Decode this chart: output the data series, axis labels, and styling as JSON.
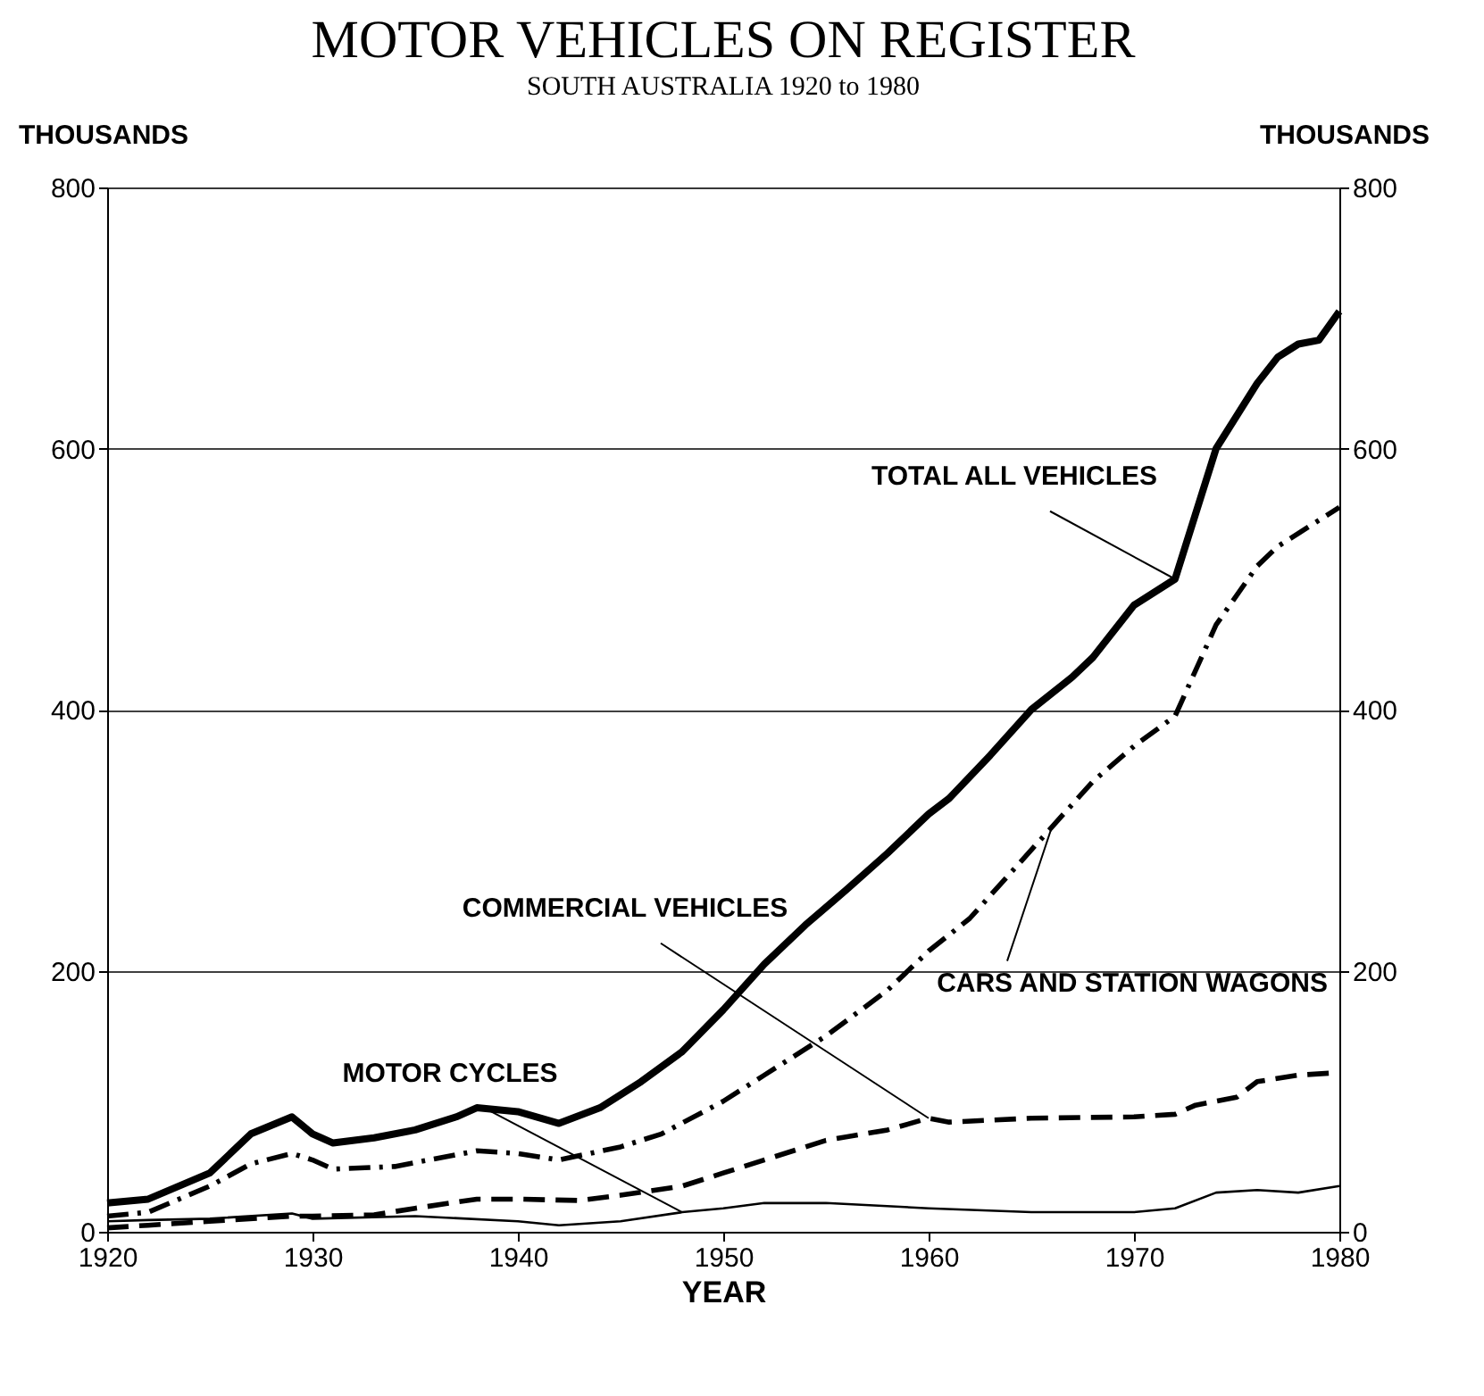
{
  "chart_data": {
    "type": "line",
    "title": "MOTOR VEHICLES ON REGISTER",
    "subtitle": "SOUTH AUSTRALIA 1920 to 1980",
    "xlabel": "YEAR",
    "ylabel": "THOUSANDS",
    "y2label": "THOUSANDS",
    "xlim": [
      1920,
      1980
    ],
    "xticks": [
      1920,
      1930,
      1940,
      1950,
      1960,
      1970,
      1980
    ],
    "ylim": [
      0,
      800
    ],
    "yticks": [
      0,
      200,
      400,
      600,
      800
    ],
    "y2lim": [
      0,
      800
    ],
    "y2ticks": [
      0,
      200,
      400,
      600,
      800
    ],
    "grid": "y",
    "marker": "none",
    "series": [
      {
        "name": "TOTAL ALL VEHICLES",
        "color": "#000000",
        "line_style": "solid",
        "x": [
          1920,
          1922,
          1925,
          1927,
          1929,
          1930,
          1931,
          1933,
          1935,
          1937,
          1938,
          1940,
          1942,
          1944,
          1946,
          1948,
          1950,
          1952,
          1954,
          1956,
          1958,
          1960,
          1961,
          1963,
          1965,
          1967,
          1968,
          1970,
          1972,
          1974,
          1976,
          1977,
          1978,
          1979,
          1980
        ],
        "values": [
          22,
          25,
          45,
          75,
          88,
          75,
          68,
          72,
          78,
          88,
          95,
          92,
          83,
          95,
          115,
          138,
          170,
          205,
          235,
          262,
          290,
          320,
          332,
          365,
          400,
          425,
          440,
          480,
          500,
          600,
          650,
          670,
          680,
          683,
          705
        ]
      },
      {
        "name": "CARS AND STATION WAGONS",
        "color": "#000000",
        "line_style": "dashdot",
        "x": [
          1920,
          1922,
          1925,
          1927,
          1929,
          1930,
          1931,
          1934,
          1938,
          1940,
          1942,
          1945,
          1947,
          1950,
          1952,
          1955,
          1958,
          1960,
          1962,
          1964,
          1966,
          1968,
          1970,
          1972,
          1973,
          1974,
          1976,
          1977,
          1978,
          1980
        ],
        "values": [
          12,
          15,
          35,
          52,
          60,
          55,
          48,
          50,
          62,
          60,
          55,
          65,
          75,
          100,
          120,
          150,
          185,
          215,
          240,
          275,
          310,
          345,
          372,
          395,
          430,
          465,
          510,
          525,
          535,
          555
        ]
      },
      {
        "name": "COMMERCIAL VEHICLES",
        "color": "#000000",
        "line_style": "dashed",
        "x": [
          1920,
          1922,
          1925,
          1929,
          1930,
          1933,
          1935,
          1938,
          1940,
          1943,
          1945,
          1948,
          1950,
          1953,
          1955,
          1958,
          1960,
          1961,
          1965,
          1970,
          1972,
          1973,
          1975,
          1976,
          1978,
          1980
        ],
        "values": [
          3,
          5,
          8,
          12,
          12,
          13,
          18,
          25,
          25,
          24,
          28,
          35,
          45,
          60,
          70,
          78,
          87,
          84,
          87,
          88,
          90,
          97,
          103,
          115,
          120,
          122
        ]
      },
      {
        "name": "MOTOR CYCLES",
        "color": "#000000",
        "line_style": "solid",
        "x": [
          1920,
          1922,
          1925,
          1929,
          1930,
          1935,
          1940,
          1942,
          1945,
          1948,
          1950,
          1952,
          1955,
          1960,
          1965,
          1970,
          1972,
          1974,
          1976,
          1978,
          1980
        ],
        "values": [
          8,
          9,
          10,
          14,
          10,
          12,
          8,
          5,
          8,
          15,
          18,
          22,
          22,
          18,
          15,
          15,
          18,
          30,
          32,
          30,
          35
        ]
      }
    ]
  }
}
